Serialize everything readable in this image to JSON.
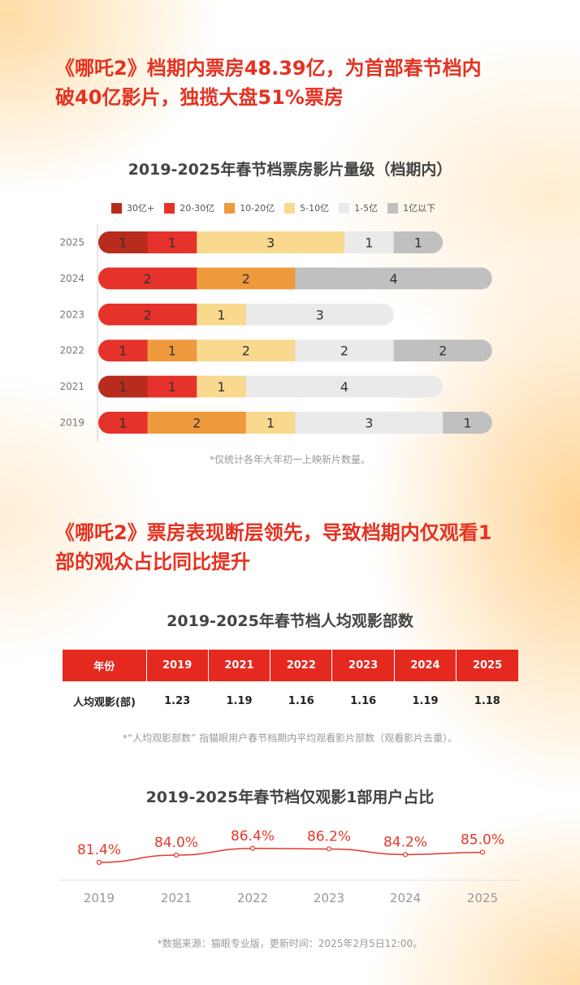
{
  "headline1": {
    "line1": "《哪吒2》档期内票房48.39亿，为首部春节档内",
    "line2": "破40亿影片，独揽大盘51%票房"
  },
  "headline2": {
    "line1": "《哪吒2》票房表现断层领先，导致档期内仅观看1",
    "line2": "部的观众占比同比提升"
  },
  "chart_data": [
    {
      "type": "bar",
      "orientation": "horizontal-stacked",
      "title": "2019-2025年春节档票房影片量级（档期内）",
      "legend_position": "top",
      "categories": [
        "2025",
        "2024",
        "2023",
        "2022",
        "2021",
        "2019"
      ],
      "series": [
        {
          "name": "30亿+",
          "color": "#b82c1e",
          "values": [
            1,
            0,
            0,
            0,
            1,
            0
          ]
        },
        {
          "name": "20-30亿",
          "color": "#e5322a",
          "values": [
            1,
            2,
            2,
            1,
            1,
            1
          ]
        },
        {
          "name": "10-20亿",
          "color": "#ef9a3d",
          "values": [
            0,
            2,
            0,
            1,
            0,
            2
          ]
        },
        {
          "name": "5-10亿",
          "color": "#f9d98e",
          "values": [
            3,
            0,
            1,
            2,
            1,
            1
          ]
        },
        {
          "name": "1-5亿",
          "color": "#eaeaea",
          "values": [
            1,
            0,
            3,
            2,
            4,
            3
          ]
        },
        {
          "name": "1亿以下",
          "color": "#c0c0c0",
          "values": [
            1,
            4,
            0,
            2,
            0,
            1
          ]
        }
      ],
      "note": "*仅统计各年大年初一上映新片数量。"
    },
    {
      "type": "table",
      "title": "2019-2025年春节档人均观影部数",
      "header_label": "年份",
      "row_label": "人均观影(部)",
      "years": [
        "2019",
        "2021",
        "2022",
        "2023",
        "2024",
        "2025"
      ],
      "values": [
        "1.23",
        "1.19",
        "1.16",
        "1.16",
        "1.19",
        "1.18"
      ],
      "note": "*“人均观影部数” 指猫眼用户春节档期内平均观看影片部数（观看影片去重）。"
    },
    {
      "type": "line",
      "title": "2019-2025年春节档仅观影1部用户占比",
      "x": [
        "2019",
        "2021",
        "2022",
        "2023",
        "2024",
        "2025"
      ],
      "y": [
        81.4,
        84.0,
        86.4,
        86.2,
        84.2,
        85.0
      ],
      "labels": [
        "81.4%",
        "84.0%",
        "86.4%",
        "86.2%",
        "84.2%",
        "85.0%"
      ],
      "color": "#e3392a"
    }
  ],
  "source_note": "*数据来源：猫眼专业版，更新时间：2025年2月5日12:00。"
}
